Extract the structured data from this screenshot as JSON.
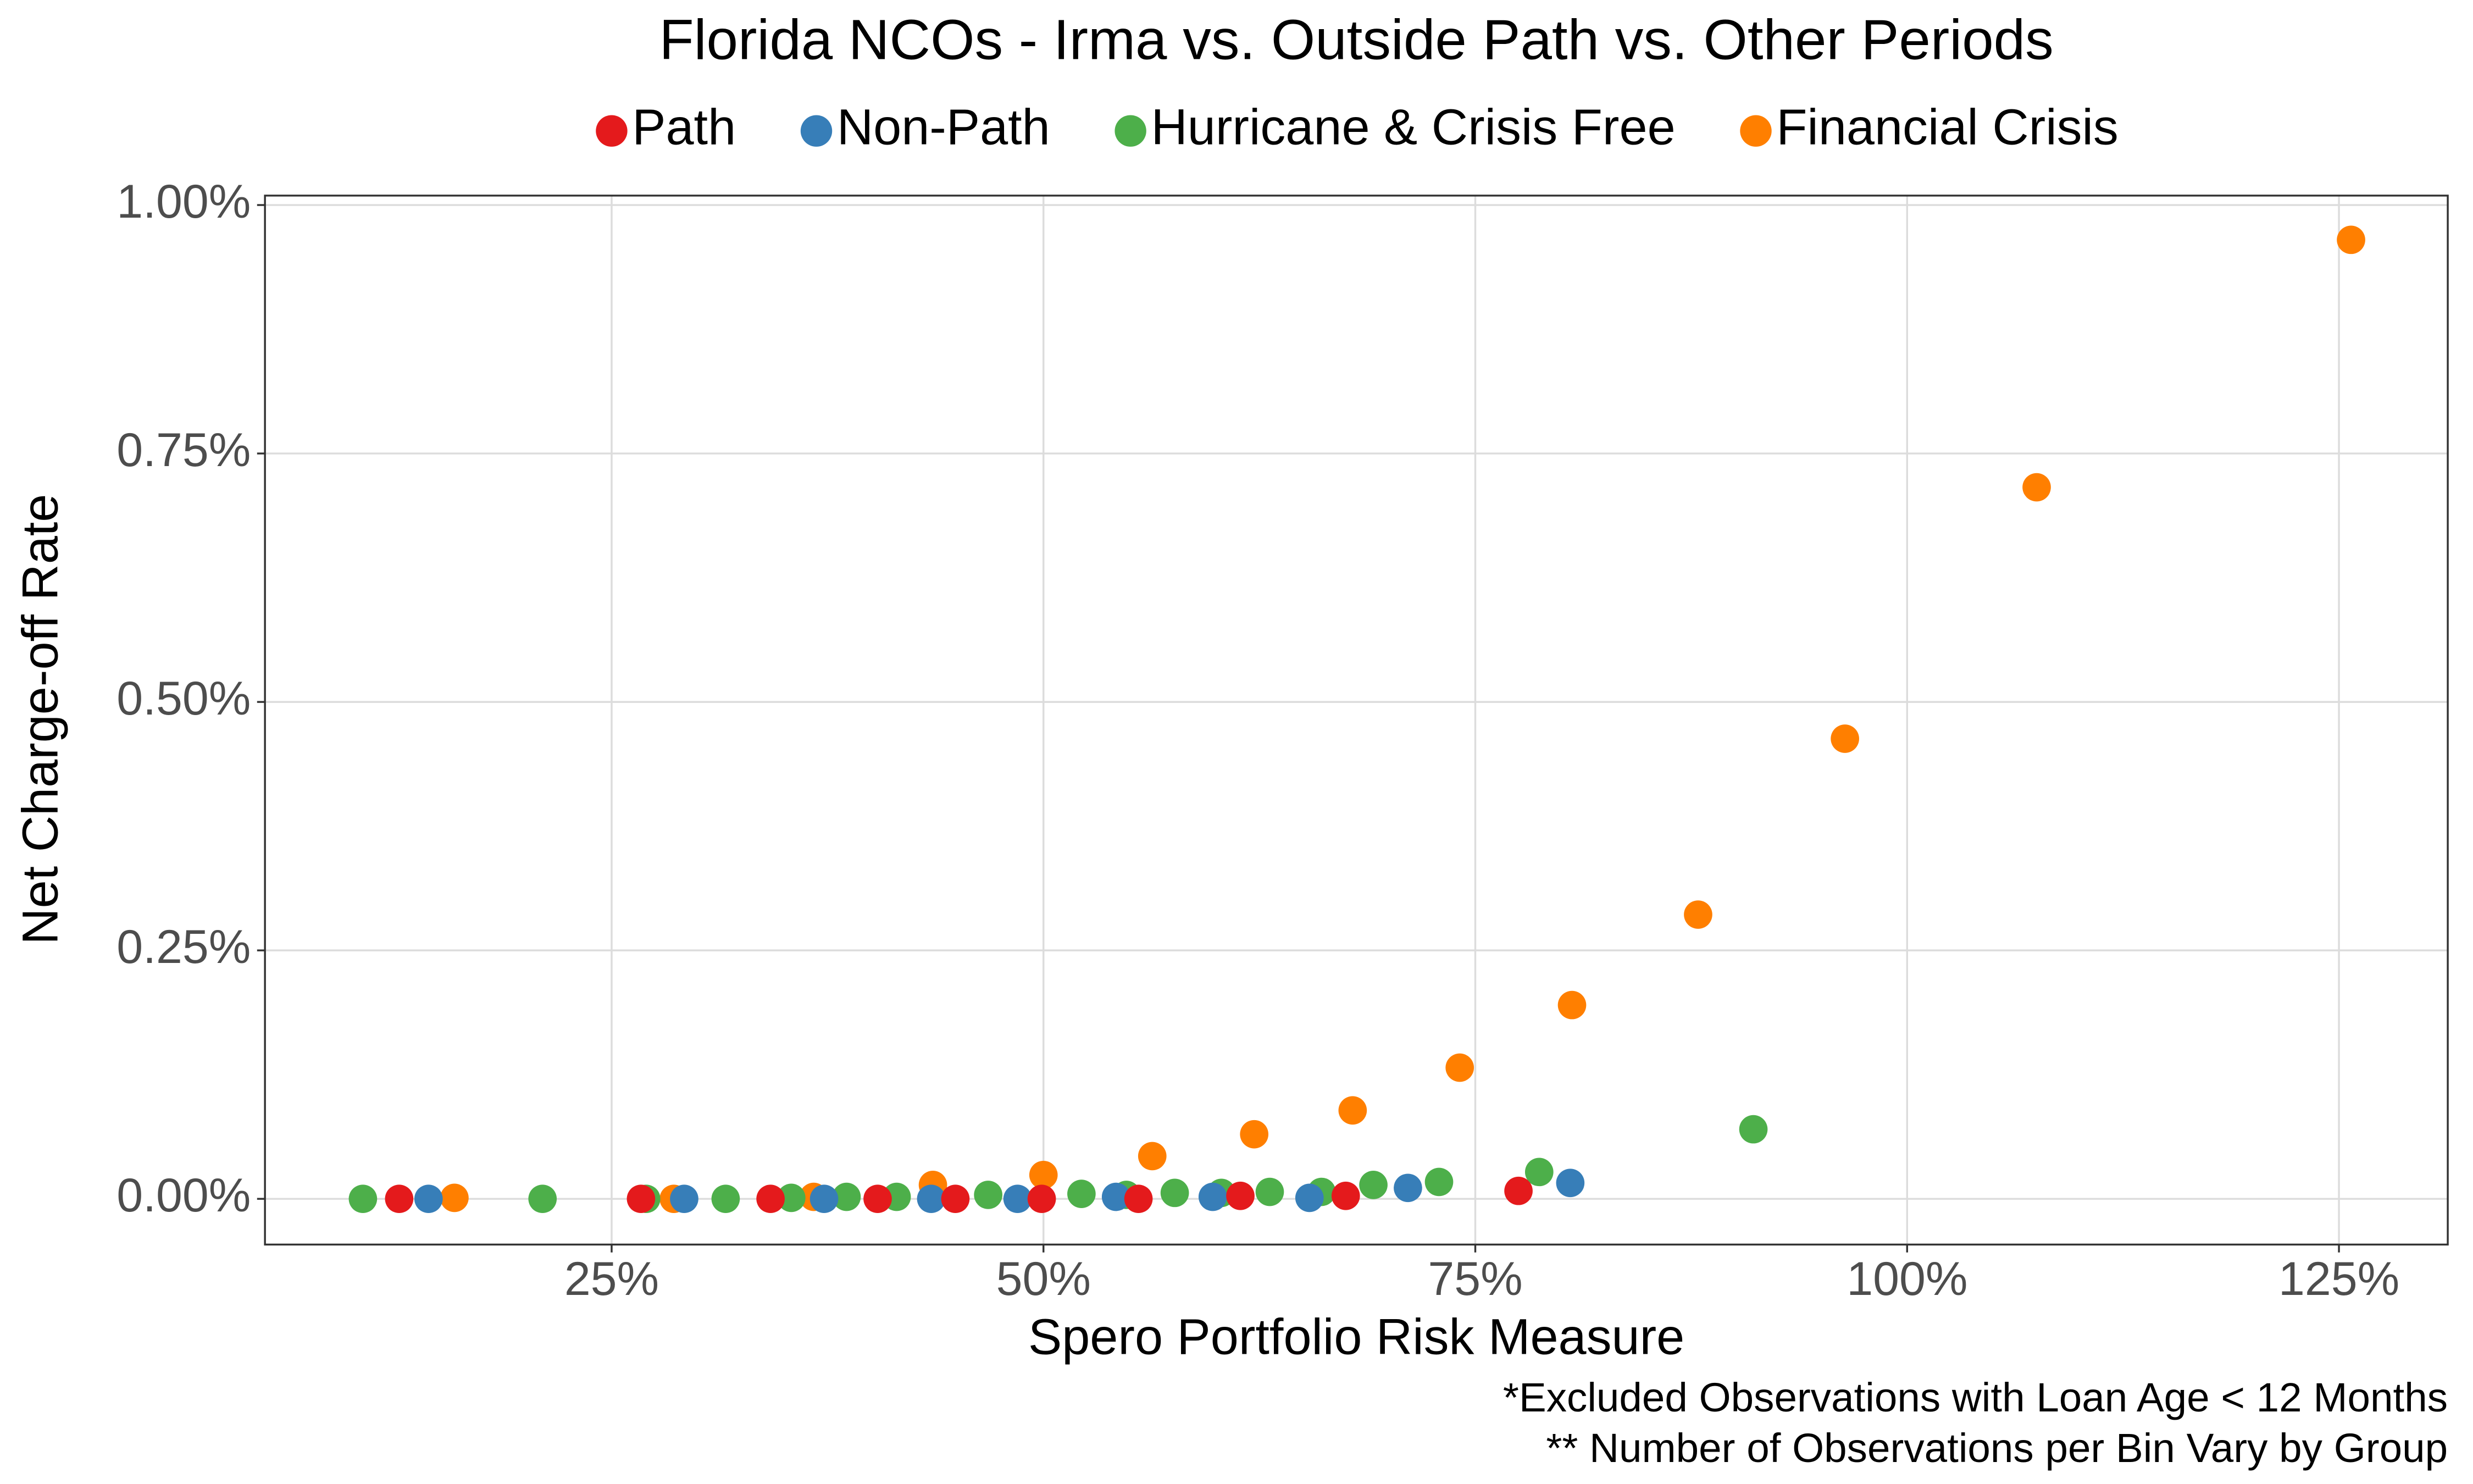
{
  "chart_data": {
    "type": "scatter",
    "title": "Florida NCOs - Irma vs. Outside Path vs. Other Periods",
    "x_label": "Spero Portfolio Risk Measure",
    "y_label": "Net Charge-off Rate",
    "annotations": [
      "*Excluded Observations with Loan Age < 12 Months",
      "** Number of Observations per Bin Vary by Group"
    ],
    "legend_position": "top",
    "grid": true,
    "xlim": [
      4.93,
      131.3
    ],
    "ylim": [
      -0.046,
      1.0095
    ],
    "xticks": [
      {
        "value": 25,
        "label": "25%"
      },
      {
        "value": 50,
        "label": "50%"
      },
      {
        "value": 75,
        "label": "75%"
      },
      {
        "value": 100,
        "label": "100%"
      },
      {
        "value": 125,
        "label": "125%"
      }
    ],
    "yticks": [
      {
        "value": 0,
        "label": "0.00%"
      },
      {
        "value": 0.25,
        "label": "0.25%"
      },
      {
        "value": 0.5,
        "label": "0.50%"
      },
      {
        "value": 0.75,
        "label": "0.75%"
      },
      {
        "value": 1,
        "label": "1.00%"
      }
    ],
    "series": [
      {
        "name": "Path",
        "color": "#e41a1c",
        "x": [
          12.7,
          26.7,
          34.2,
          40.4,
          44.9,
          49.9,
          55.5,
          61.4,
          67.5,
          77.5
        ],
        "values": [
          0,
          0,
          0,
          0,
          0,
          0,
          0,
          0.003,
          0.003,
          0.008
        ]
      },
      {
        "name": "Non-Path",
        "color": "#377eb8",
        "x": [
          14.4,
          29.2,
          37.3,
          43.5,
          48.5,
          54.2,
          59.8,
          65.4,
          71.1,
          80.5
        ],
        "values": [
          0,
          0,
          0,
          0,
          0,
          0.002,
          0.002,
          0.001,
          0.011,
          0.016
        ]
      },
      {
        "name": "Hurricane & Crisis Free",
        "color": "#4daf4a",
        "x": [
          10.6,
          21.0,
          27.0,
          31.6,
          35.4,
          38.6,
          41.5,
          46.8,
          52.2,
          54.8,
          57.6,
          60.3,
          63.1,
          66.1,
          69.1,
          72.9,
          78.7,
          91.1
        ],
        "values": [
          0,
          0,
          0,
          0,
          0.001,
          0.002,
          0.002,
          0.004,
          0.005,
          0.004,
          0.006,
          0.006,
          0.007,
          0.007,
          0.014,
          0.017,
          0.027,
          0.07
        ]
      },
      {
        "name": "Financial Crisis",
        "color": "#ff7f00",
        "x": [
          15.9,
          28.6,
          36.7,
          43.6,
          50.0,
          56.3,
          62.2,
          67.9,
          74.1,
          80.6,
          87.9,
          96.4,
          107.5,
          125.7
        ],
        "values": [
          0.001,
          0,
          0.002,
          0.014,
          0.024,
          0.043,
          0.065,
          0.089,
          0.132,
          0.195,
          0.286,
          0.463,
          0.716,
          0.965
        ]
      }
    ]
  }
}
